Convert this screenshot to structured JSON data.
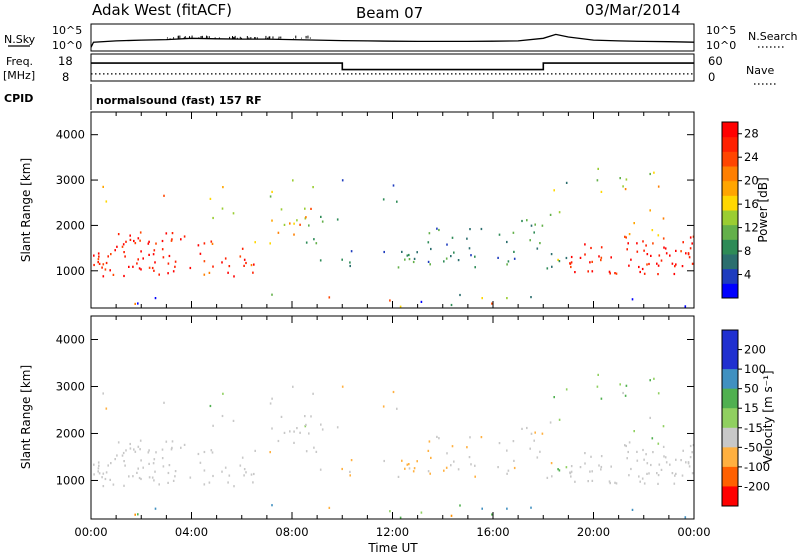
{
  "header": {
    "station": "Adak West (fitACF)",
    "beam": "Beam 07",
    "date": "03/Mar/2014"
  },
  "panels": {
    "nsky": {
      "label": "N.Sky",
      "tick_top": "10^5",
      "tick_bottom": "10^0"
    },
    "nsearch": {
      "label": "N.Search",
      "tick_top": "10^5",
      "tick_bottom": "10^0"
    },
    "freq": {
      "label_1": "Freq.",
      "label_2": "[MHz]",
      "tick_top": "18",
      "tick_bottom": "8"
    },
    "nave": {
      "label": "Nave",
      "tick_top": "60",
      "tick_bottom": "0"
    },
    "cpid": {
      "label": "CPID",
      "value": "normalsound (fast) 157 RF"
    }
  },
  "colors": {
    "power": [
      "#0000ff",
      "#1e3cbe",
      "#2b6e6e",
      "#2e8b57",
      "#63b04a",
      "#9acd32",
      "#ffd700",
      "#ffa500",
      "#ff7f00",
      "#ff4500",
      "#ff2000",
      "#ff0000"
    ],
    "velocity": [
      "#2030d0",
      "#4090c0",
      "#50b050",
      "#90d060",
      "#c8c8c8",
      "#c8c8c8",
      "#ffb040",
      "#ff9000",
      "#ff6000",
      "#ff3000",
      "#ff0000"
    ],
    "velocity_gray": "#c8c8c8"
  },
  "chart_data": [
    {
      "type": "line",
      "name": "sky-noise",
      "x_unit": "UT hours",
      "x": [
        0,
        0.1,
        1,
        2,
        3,
        4,
        5,
        6,
        7,
        8,
        9,
        10,
        11,
        12,
        13,
        14,
        15,
        16,
        17,
        18,
        18.5,
        19,
        20,
        21,
        22,
        23,
        24
      ],
      "values": [
        0.1,
        0.3,
        0.35,
        0.38,
        0.4,
        0.45,
        0.43,
        0.42,
        0.42,
        0.4,
        0.38,
        0.36,
        0.35,
        0.34,
        0.33,
        0.33,
        0.33,
        0.34,
        0.35,
        0.45,
        0.6,
        0.5,
        0.38,
        0.35,
        0.33,
        0.32,
        0.3
      ],
      "ylim_labels": [
        "10^0",
        "10^5"
      ]
    },
    {
      "type": "line",
      "name": "frequency",
      "ylabel": "Freq. [MHz]",
      "ylim": [
        8,
        18
      ],
      "x": [
        0,
        10,
        10,
        18,
        18,
        24
      ],
      "values": [
        14.5,
        14.5,
        12,
        12,
        14.5,
        14.5
      ]
    },
    {
      "type": "line",
      "name": "nave",
      "ylim": [
        0,
        60
      ],
      "x": [
        0,
        24
      ],
      "values": [
        14,
        14
      ]
    },
    {
      "type": "heatmap",
      "name": "power",
      "ylabel": "Slant Range [km]",
      "xlabel": "Time UT",
      "xlim": [
        0,
        24
      ],
      "ylim": [
        180,
        4500
      ],
      "x_ticks": [
        "00:00",
        "04:00",
        "08:00",
        "12:00",
        "16:00",
        "20:00",
        "00:00"
      ],
      "y_ticks": [
        1000,
        2000,
        3000,
        4000
      ],
      "colorbar": {
        "label": "Power [dB]",
        "ticks": [
          4,
          8,
          12,
          16,
          20,
          24,
          28
        ],
        "range": [
          0,
          30
        ]
      }
    },
    {
      "type": "heatmap",
      "name": "velocity",
      "ylabel": "Slant Range [km]",
      "xlabel": "Time UT",
      "xlim": [
        0,
        24
      ],
      "ylim": [
        180,
        4500
      ],
      "x_ticks": [
        "00:00",
        "04:00",
        "08:00",
        "12:00",
        "16:00",
        "20:00",
        "00:00"
      ],
      "y_ticks": [
        1000,
        2000,
        3000,
        4000
      ],
      "colorbar": {
        "label": "Velocity [m s⁻¹]",
        "ticks": [
          200,
          100,
          50,
          15,
          -15,
          -50,
          -100,
          -200
        ],
        "range": [
          -250,
          250
        ]
      }
    }
  ],
  "axes": {
    "xlabel": "Time UT"
  }
}
